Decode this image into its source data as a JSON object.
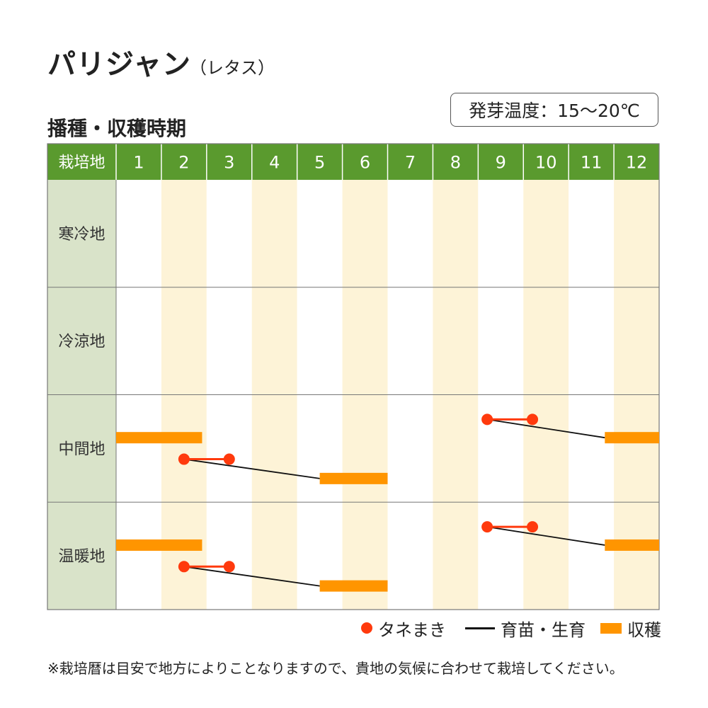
{
  "title": "パリジャン",
  "subtitle": "（レタス）",
  "heading": "播種・収穫時期",
  "germination": "発芽温度：15～20℃",
  "note": "※栽培暦は目安で地方によりことなりますので、貴地の気候に合わせて栽培してください。",
  "legend": {
    "sowing": "タネまき",
    "seedling": "育苗・生育",
    "harvest": "収穫"
  },
  "colors": {
    "header": "#5a9a2e",
    "region_cell": "#d9e3c9",
    "stripe": "#fdf3d7",
    "sowing": "#ff3a0d",
    "harvest": "#ff9500",
    "line": "#111111"
  },
  "chart_data": {
    "type": "table",
    "corner_label": "栽培地",
    "months": [
      "1",
      "2",
      "3",
      "4",
      "5",
      "6",
      "7",
      "8",
      "9",
      "10",
      "11",
      "12"
    ],
    "regions": [
      {
        "name": "寒冷地",
        "schedules": []
      },
      {
        "name": "冷涼地",
        "schedules": []
      },
      {
        "name": "中間地",
        "schedules": [
          {
            "sowing": [
              9.2,
              10.2
            ],
            "harvest": [
              11.8,
              13.0
            ]
          },
          {
            "sowing": [
              2.5,
              3.5
            ],
            "harvest": [
              5.5,
              7.0
            ]
          },
          {
            "harvest": [
              1.0,
              2.9
            ]
          }
        ]
      },
      {
        "name": "温暖地",
        "schedules": [
          {
            "sowing": [
              9.2,
              10.2
            ],
            "harvest": [
              11.8,
              13.0
            ]
          },
          {
            "sowing": [
              2.5,
              3.5
            ],
            "harvest": [
              5.5,
              7.0
            ]
          },
          {
            "harvest": [
              1.0,
              2.9
            ]
          }
        ]
      }
    ]
  }
}
